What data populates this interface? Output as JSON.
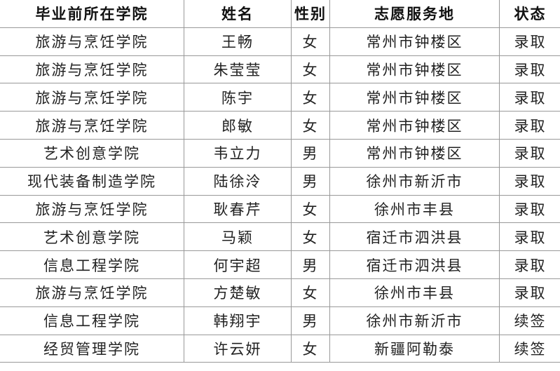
{
  "headers": [
    "毕业前所在学院",
    "姓名",
    "性别",
    "志愿服务地",
    "状态"
  ],
  "rows": [
    [
      "旅游与烹饪学院",
      "王畅",
      "女",
      "常州市钟楼区",
      "录取"
    ],
    [
      "旅游与烹饪学院",
      "朱莹莹",
      "女",
      "常州市钟楼区",
      "录取"
    ],
    [
      "旅游与烹饪学院",
      "陈宇",
      "女",
      "常州市钟楼区",
      "录取"
    ],
    [
      "旅游与烹饪学院",
      "郎敏",
      "女",
      "常州市钟楼区",
      "录取"
    ],
    [
      "艺术创意学院",
      "韦立力",
      "男",
      "常州市钟楼区",
      "录取"
    ],
    [
      "现代装备制造学院",
      "陆徐泠",
      "男",
      "徐州市新沂市",
      "录取"
    ],
    [
      "旅游与烹饪学院",
      "耿春芹",
      "女",
      "徐州市丰县",
      "录取"
    ],
    [
      "艺术创意学院",
      "马颖",
      "女",
      "宿迁市泗洪县",
      "录取"
    ],
    [
      "信息工程学院",
      "何宇超",
      "男",
      "宿迁市泗洪县",
      "录取"
    ],
    [
      "旅游与烹饪学院",
      "方楚敏",
      "女",
      "徐州市丰县",
      "录取"
    ],
    [
      "信息工程学院",
      "韩翔宇",
      "男",
      "徐州市新沂市",
      "续签"
    ],
    [
      "经贸管理学院",
      "许云妍",
      "女",
      "新疆阿勒泰",
      "续签"
    ]
  ]
}
